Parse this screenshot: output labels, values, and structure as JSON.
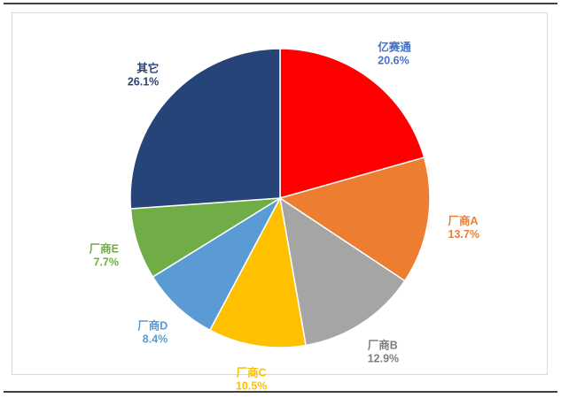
{
  "chart_data": {
    "type": "pie",
    "title": "",
    "start_angle_deg": 0,
    "direction": "clockwise",
    "slices": [
      {
        "label": "亿赛通",
        "value": 20.6,
        "value_text": "20.6%",
        "color": "#ff0000",
        "label_color": "#4472c4"
      },
      {
        "label": "厂商A",
        "value": 13.7,
        "value_text": "13.7%",
        "color": "#ed7d31",
        "label_color": "#ed7d31"
      },
      {
        "label": "厂商B",
        "value": 12.9,
        "value_text": "12.9%",
        "color": "#a5a5a5",
        "label_color": "#7f7f7f"
      },
      {
        "label": "厂商C",
        "value": 10.5,
        "value_text": "10.5%",
        "color": "#ffc000",
        "label_color": "#ffc000"
      },
      {
        "label": "厂商D",
        "value": 8.4,
        "value_text": "8.4%",
        "color": "#5b9bd5",
        "label_color": "#5b9bd5"
      },
      {
        "label": "厂商E",
        "value": 7.7,
        "value_text": "7.7%",
        "color": "#70ad47",
        "label_color": "#70ad47"
      },
      {
        "label": "其它",
        "value": 26.1,
        "value_text": "26.1%",
        "color": "#264478",
        "label_color": "#264478"
      }
    ],
    "legend": "none"
  }
}
